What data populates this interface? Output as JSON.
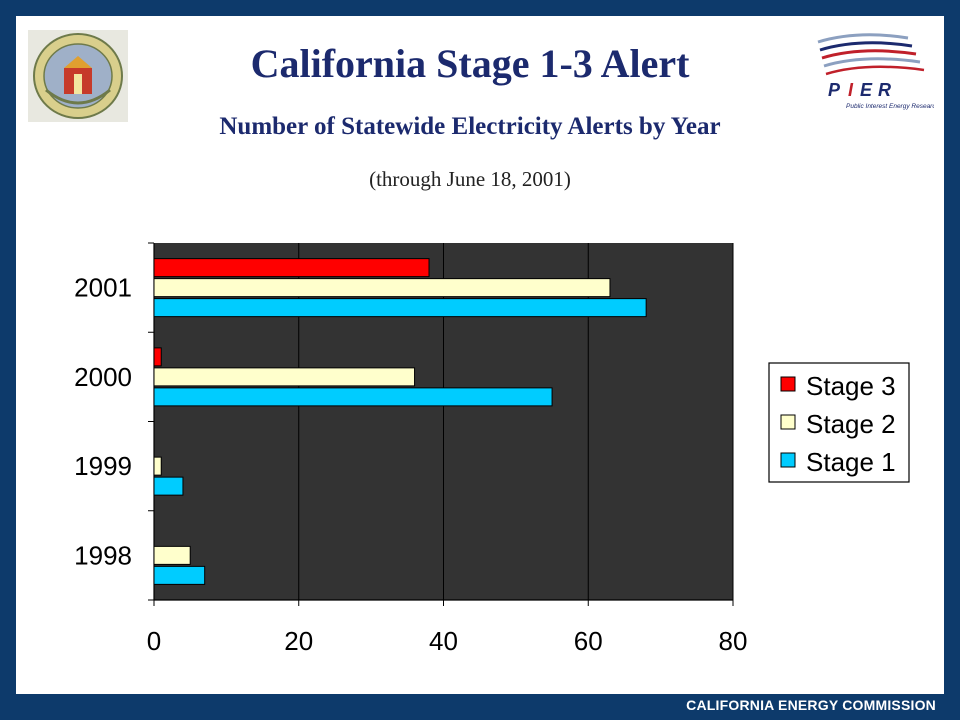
{
  "header": {
    "title": "California Stage 1-3 Alert",
    "subtitle": "Number of Statewide Electricity Alerts by Year",
    "note": "(through June 18, 2001)"
  },
  "footer": {
    "text": "CALIFORNIA ENERGY COMMISSION"
  },
  "logos": {
    "seal": "california-energy-commission-seal",
    "pier": {
      "name": "pier-logo",
      "wordmark": "P I E R",
      "tagline": "Public Interest Energy Research"
    }
  },
  "colors": {
    "frame": "#0d3a6b",
    "plot_background": "#333333",
    "stage3": "#ff0000",
    "stage2": "#ffffcc",
    "stage1": "#00ccff",
    "title": "#1c2a6e"
  },
  "chart_data": {
    "type": "bar",
    "orientation": "horizontal",
    "categories": [
      "1998",
      "1999",
      "2000",
      "2001"
    ],
    "series": [
      {
        "name": "Stage 3",
        "values": [
          0,
          0,
          1,
          38
        ]
      },
      {
        "name": "Stage 2",
        "values": [
          5,
          1,
          36,
          63
        ]
      },
      {
        "name": "Stage 1",
        "values": [
          7,
          4,
          55,
          68
        ]
      }
    ],
    "xlim": [
      0,
      80
    ],
    "xticks": [
      0,
      20,
      40,
      60,
      80
    ],
    "grid": true,
    "legend": "right"
  }
}
